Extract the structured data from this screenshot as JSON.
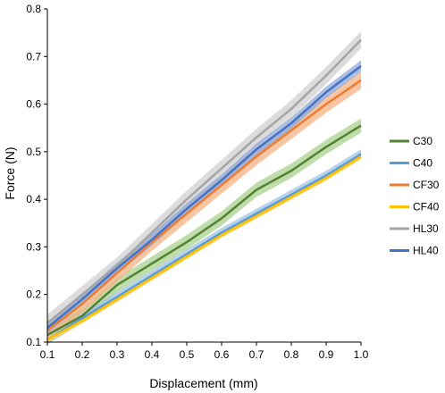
{
  "chart_data": {
    "type": "line",
    "xlabel": "Displacement (mm)",
    "ylabel": "Force (N)",
    "xlim": [
      0.1,
      1.0
    ],
    "ylim": [
      0.1,
      0.8
    ],
    "x_ticks": [
      "0.1",
      "0.2",
      "0.3",
      "0.4",
      "0.5",
      "0.6",
      "0.7",
      "0.8",
      "0.9",
      "1.0"
    ],
    "y_ticks": [
      "0.1",
      "0.2",
      "0.3",
      "0.4",
      "0.5",
      "0.6",
      "0.7",
      "0.8"
    ],
    "grid": false,
    "legend_position": "right",
    "x": [
      0.1,
      0.2,
      0.3,
      0.4,
      0.5,
      0.6,
      0.7,
      0.8,
      0.9,
      1.0
    ],
    "series": [
      {
        "name": "C30",
        "color": "#548235",
        "band_color": "#a9d18e",
        "values": [
          0.115,
          0.155,
          0.22,
          0.265,
          0.31,
          0.36,
          0.42,
          0.46,
          0.51,
          0.555
        ],
        "band": 0.015
      },
      {
        "name": "C40",
        "color": "#5b9bd5",
        "band_color": "#9dc3e6",
        "values": [
          0.105,
          0.15,
          0.195,
          0.24,
          0.285,
          0.33,
          0.37,
          0.41,
          0.45,
          0.495
        ],
        "band": 0.01
      },
      {
        "name": "CF30",
        "color": "#ed7d31",
        "band_color": "#f4b183",
        "values": [
          0.125,
          0.18,
          0.245,
          0.31,
          0.37,
          0.43,
          0.49,
          0.545,
          0.6,
          0.65
        ],
        "band": 0.018
      },
      {
        "name": "CF40",
        "color": "#ffc000",
        "band_color": "#ffd966",
        "values": [
          0.105,
          0.145,
          0.19,
          0.235,
          0.28,
          0.325,
          0.365,
          0.405,
          0.445,
          0.49
        ],
        "band": 0.006
      },
      {
        "name": "HL30",
        "color": "#a5a5a5",
        "band_color": "#d0d0d0",
        "values": [
          0.14,
          0.2,
          0.26,
          0.33,
          0.4,
          0.465,
          0.53,
          0.59,
          0.66,
          0.735
        ],
        "band": 0.018
      },
      {
        "name": "HL40",
        "color": "#4472c4",
        "band_color": "#8faadc",
        "values": [
          0.13,
          0.19,
          0.255,
          0.315,
          0.38,
          0.44,
          0.505,
          0.56,
          0.625,
          0.68
        ],
        "band": 0.012
      }
    ]
  }
}
